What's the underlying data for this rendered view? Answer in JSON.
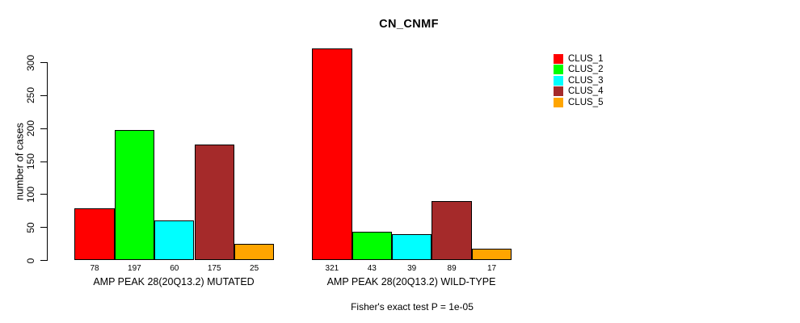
{
  "chart_data": {
    "type": "bar",
    "title": "CN_CNMF",
    "ylabel": "number of cases",
    "ylim": [
      0,
      300
    ],
    "yticks": [
      0,
      50,
      100,
      150,
      200,
      250,
      300
    ],
    "grid": false,
    "legend_position": "right-outside",
    "categories": [
      "AMP PEAK 28(20Q13.2) MUTATED",
      "AMP PEAK 28(20Q13.2) WILD-TYPE"
    ],
    "series": [
      {
        "name": "CLUS_1",
        "color": "#ff0000",
        "values": [
          78,
          321
        ]
      },
      {
        "name": "CLUS_2",
        "color": "#00ff00",
        "values": [
          197,
          43
        ]
      },
      {
        "name": "CLUS_3",
        "color": "#00ffff",
        "values": [
          60,
          39
        ]
      },
      {
        "name": "CLUS_4",
        "color": "#a52a2a",
        "values": [
          175,
          89
        ]
      },
      {
        "name": "CLUS_5",
        "color": "#ffa500",
        "values": [
          25,
          17
        ]
      }
    ],
    "bar_value_labels": [
      [
        "78",
        "197",
        "60",
        "175",
        "25"
      ],
      [
        "321",
        "43",
        "39",
        "89",
        "17"
      ]
    ],
    "footnote": "Fisher's exact test P = 1e-05",
    "axis_color": "#000000",
    "bar_border_color": "#000000"
  }
}
